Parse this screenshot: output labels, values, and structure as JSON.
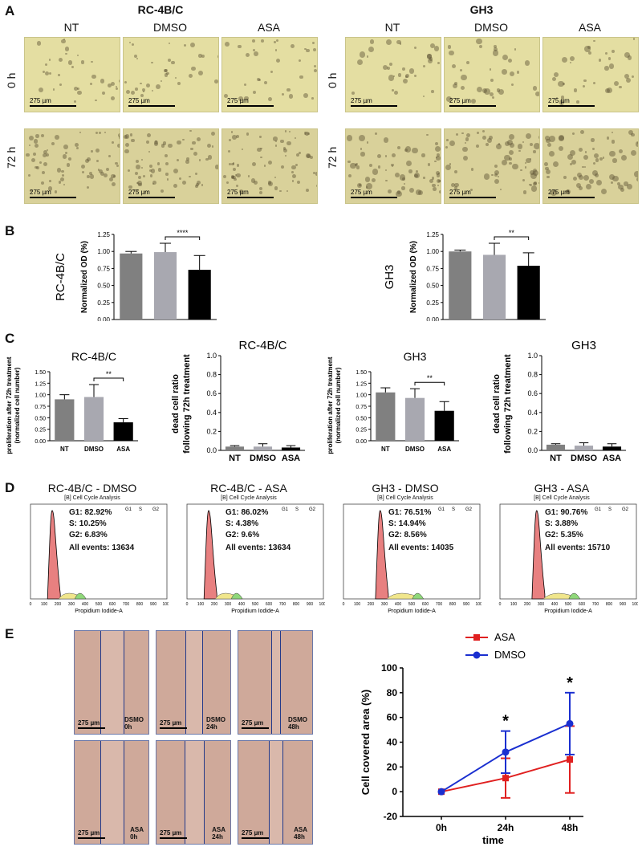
{
  "panels": {
    "A": "A",
    "B": "B",
    "C": "C",
    "D": "D",
    "E": "E"
  },
  "panelA": {
    "rc_title": "RC-4B/C",
    "gh3_title": "GH3",
    "columns": [
      "NT",
      "DMSO",
      "ASA"
    ],
    "rows": [
      "0 h",
      "72 h"
    ],
    "scale_label": "275 µm"
  },
  "panelB": {
    "charts": [
      {
        "cell": "RC-4B/C",
        "ylabel": "Normalized OD (%)",
        "sig": "****"
      },
      {
        "cell": "GH3",
        "ylabel": "Normalized OD (%)",
        "sig": "**"
      }
    ]
  },
  "panelC": {
    "prolif_ylabel_1": "proliferation after 72h treatment",
    "prolif_ylabel_2": "(normalized cell number)",
    "dead_ylabel_1": "dead cell ratio",
    "dead_ylabel_2": "following 72h treatment",
    "titles": [
      "RC-4B/C",
      "RC-4B/C",
      "GH3",
      "GH3"
    ],
    "sig": "**"
  },
  "panelD": {
    "subtitle": "[B] Cell Cycle Analysis",
    "xlabel": "Propidium Iodide-A",
    "plots": [
      {
        "title": "RC-4B/C - DMSO",
        "g1": "G1: 82.92%",
        "s": "S: 10.25%",
        "g2": "G2: 6.83%",
        "events": "All events: 13634"
      },
      {
        "title": "RC-4B/C - ASA",
        "g1": "G1: 86.02%",
        "s": "S: 4.38%",
        "g2": "G2: 9.6%",
        "events": "All events: 13634"
      },
      {
        "title": "GH3 - DMSO",
        "g1": "G1: 76.51%",
        "s": "S: 14.94%",
        "g2": "G2: 8.56%",
        "events": "All events: 14035"
      },
      {
        "title": "GH3 - ASA",
        "g1": "G1: 90.76%",
        "s": "S: 3.88%",
        "g2": "G2: 5.35%",
        "events": "All events: 15710"
      }
    ]
  },
  "panelE": {
    "scale_label": "275 µm",
    "top_labels": [
      "DSMO\n0h",
      "DSMO\n24h",
      "DSMO\n48h"
    ],
    "bottom_labels": [
      "ASA\n0h",
      "ASA\n24h",
      "ASA\n48h"
    ],
    "gap_fraction_top": [
      0.3,
      0.22,
      0.1
    ],
    "gap_fraction_bottom": [
      0.3,
      0.25,
      0.18
    ]
  },
  "colors": {
    "nt": "#808080",
    "dmso": "#a8a8b0",
    "asa": "#000000",
    "asa_line": "#e02020",
    "dmso_line": "#1a2fd0",
    "g1_fill": "#e88080",
    "s_fill": "#f0e68c",
    "g2_fill": "#8fd87a"
  },
  "chart_data": [
    {
      "type": "bar",
      "title": "",
      "ylabel": "Normalized OD (%)",
      "row_label": "RC-4B/C",
      "categories": [
        "NT",
        "DMSO",
        "ASA"
      ],
      "values": [
        0.97,
        0.99,
        0.73
      ],
      "errors": [
        0.03,
        0.13,
        0.21
      ],
      "ylim": [
        0,
        1.25
      ],
      "yticks": [
        "0.00",
        "0.25",
        "0.50",
        "0.75",
        "1.00",
        "1.25"
      ],
      "annotation": "****"
    },
    {
      "type": "bar",
      "title": "",
      "ylabel": "Normalized OD (%)",
      "row_label": "GH3",
      "categories": [
        "NT",
        "DMSO",
        "ASA"
      ],
      "values": [
        1.0,
        0.95,
        0.79
      ],
      "errors": [
        0.02,
        0.17,
        0.19
      ],
      "ylim": [
        0,
        1.25
      ],
      "yticks": [
        "0.00",
        "0.25",
        "0.50",
        "0.75",
        "1.00",
        "1.25"
      ],
      "annotation": "**"
    },
    {
      "type": "bar",
      "title": "RC-4B/C",
      "ylabel": "proliferation after 72h treatment (normalized cell number)",
      "categories": [
        "NT",
        "DMSO",
        "ASA"
      ],
      "values": [
        0.9,
        0.95,
        0.4
      ],
      "errors": [
        0.1,
        0.27,
        0.08
      ],
      "ylim": [
        0,
        1.5
      ],
      "yticks": [
        "0.00",
        "0.25",
        "0.50",
        "0.75",
        "1.00",
        "1.25",
        "1.50"
      ],
      "annotation": "**"
    },
    {
      "type": "bar",
      "title": "RC-4B/C",
      "ylabel": "dead cell ratio following 72h treatment",
      "categories": [
        "NT",
        "DMSO",
        "ASA"
      ],
      "values": [
        0.04,
        0.04,
        0.03
      ],
      "errors": [
        0.01,
        0.03,
        0.02
      ],
      "ylim": [
        0,
        1.0
      ],
      "yticks": [
        "0.0",
        "0.2",
        "0.4",
        "0.6",
        "0.8",
        "1.0"
      ]
    },
    {
      "type": "bar",
      "title": "GH3",
      "ylabel": "proliferation after 72h treatment (normalized cell number)",
      "categories": [
        "NT",
        "DMSO",
        "ASA"
      ],
      "values": [
        1.05,
        0.93,
        0.65
      ],
      "errors": [
        0.1,
        0.2,
        0.2
      ],
      "ylim": [
        0,
        1.5
      ],
      "yticks": [
        "0.00",
        "0.25",
        "0.50",
        "0.75",
        "1.00",
        "1.25",
        "1.50"
      ],
      "annotation": "**"
    },
    {
      "type": "bar",
      "title": "GH3",
      "ylabel": "dead cell ratio following 72h treatment",
      "categories": [
        "NT",
        "DMSO",
        "ASA"
      ],
      "values": [
        0.06,
        0.05,
        0.04
      ],
      "errors": [
        0.01,
        0.03,
        0.03
      ],
      "ylim": [
        0,
        1.0
      ],
      "yticks": [
        "0.0",
        "0.2",
        "0.4",
        "0.6",
        "0.8",
        "1.0"
      ]
    },
    {
      "type": "line",
      "title": "",
      "xlabel": "time",
      "ylabel": "Cell covered area (%)",
      "x": [
        "0h",
        "24h",
        "48h"
      ],
      "ylim": [
        -20,
        100
      ],
      "yticks": [
        "-20",
        "0",
        "20",
        "40",
        "60",
        "80",
        "100"
      ],
      "series": [
        {
          "name": "ASA",
          "values": [
            0,
            11,
            26
          ],
          "errors": [
            0,
            16,
            27
          ]
        },
        {
          "name": "DMSO",
          "values": [
            0,
            32,
            55
          ],
          "errors": [
            0,
            17,
            25
          ]
        }
      ],
      "annotations": [
        "*",
        "*"
      ],
      "legend": "top"
    }
  ]
}
